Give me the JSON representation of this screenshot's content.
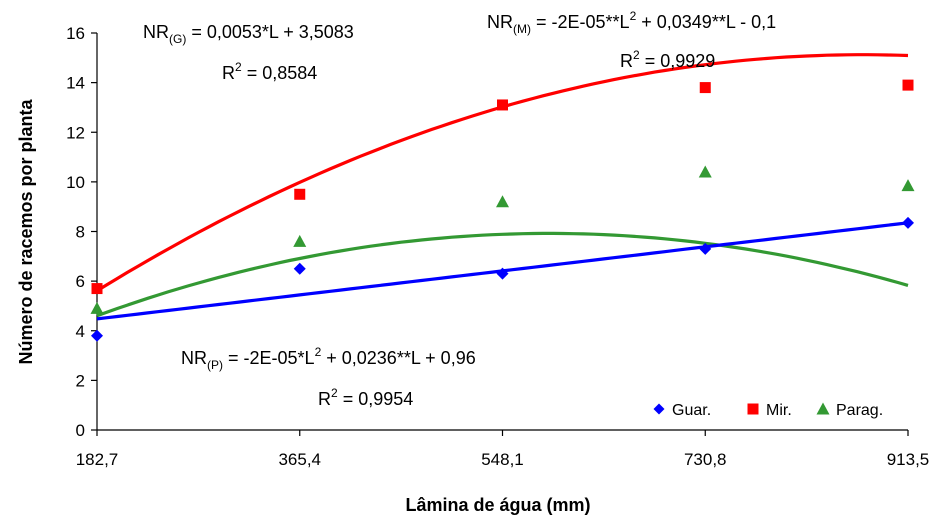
{
  "chart_data": {
    "type": "scatter",
    "xlabel": "Lâmina de água (mm)",
    "ylabel": "Número de racemos por planta",
    "x": [
      182.7,
      365.4,
      548.1,
      730.8,
      913.5
    ],
    "x_tick_labels": [
      "182,7",
      "365,4",
      "548,1",
      "730,8",
      "913,5"
    ],
    "ylim": [
      0,
      16
    ],
    "y_ticks": [
      0,
      2,
      4,
      6,
      8,
      10,
      12,
      14,
      16
    ],
    "y_tick_labels": [
      "0",
      "2",
      "4",
      "6",
      "8",
      "10",
      "12",
      "14",
      "16"
    ],
    "grid": false,
    "legend_position": "bottom-right",
    "series": [
      {
        "name": "Guar.",
        "marker": "diamond",
        "color": "#0000FF",
        "values": [
          3.8,
          6.5,
          6.3,
          7.3,
          8.35
        ],
        "trend": {
          "kind": "linear",
          "a": 0.0053,
          "b": 3.5083
        }
      },
      {
        "name": "Mir.",
        "marker": "square",
        "color": "#FF0000",
        "values": [
          5.7,
          9.5,
          13.1,
          13.8,
          13.9
        ],
        "trend": {
          "kind": "quadratic",
          "a": -2e-05,
          "b": 0.0349,
          "c": -0.1
        }
      },
      {
        "name": "Parag.",
        "marker": "triangle",
        "color": "#339933",
        "values": [
          4.9,
          7.6,
          9.2,
          10.4,
          9.85
        ],
        "trend": {
          "kind": "quadratic",
          "a": -2e-05,
          "b": 0.0236,
          "c": 0.96
        }
      }
    ],
    "annotations": [
      {
        "id": "eq-g",
        "prefix": "NR",
        "sub": "(G)",
        "sup": "",
        "rest": " = 0,0053*L + 3,5083"
      },
      {
        "id": "r2-g",
        "text": "R",
        "sup": "2",
        "rest": " = 0,8584"
      },
      {
        "id": "eq-m",
        "prefix": "NR",
        "sub": "(M)",
        "rest1": " = -2E-05**L",
        "sup": "2",
        "rest2": " + 0,0349**L - 0,1"
      },
      {
        "id": "r2-m",
        "text": "R",
        "sup": "2",
        "rest": " = 0,9929"
      },
      {
        "id": "eq-p",
        "prefix": "NR",
        "sub": "(P)",
        "rest1": " = -2E-05*L",
        "sup": "2",
        "rest2": " + 0,0236**L + 0,96"
      },
      {
        "id": "r2-p",
        "text": "R",
        "sup": "2",
        "rest": " = 0,9954"
      }
    ]
  }
}
